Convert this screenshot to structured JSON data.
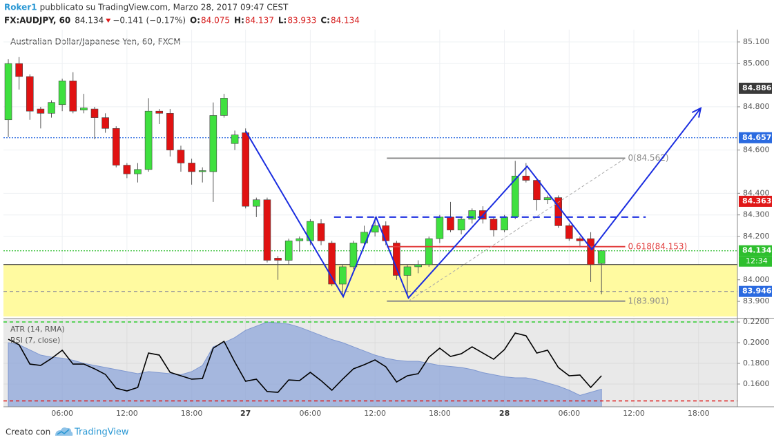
{
  "header": {
    "author": "Roker1",
    "published": "pubblicato su TradingView.com, Marzo 28, 2017 09:47 CEST",
    "symbol": "FX:AUDJPY, 60",
    "last": 84.134,
    "change": "−0.141 (−0.17%)",
    "ohlc": [
      {
        "key": "O:",
        "value": 84.075
      },
      {
        "key": "H:",
        "value": 84.137
      },
      {
        "key": "L:",
        "value": 83.933
      },
      {
        "key": "C:",
        "value": 84.134
      }
    ]
  },
  "footer": {
    "text": "Creato con",
    "brand": "TradingView"
  },
  "chart_data": [
    {
      "type": "candlestick",
      "title": "Australian Dollar/Japanese Yen, 60, FXCM",
      "x": [
        0,
        1,
        2,
        3,
        4,
        5,
        6,
        7,
        8,
        9,
        10,
        11,
        12,
        13,
        14,
        15,
        16,
        17,
        18,
        19,
        20,
        21,
        22,
        23,
        24,
        25,
        26,
        27,
        28,
        29,
        30,
        31,
        32,
        33,
        34,
        35,
        36,
        37,
        38,
        39,
        40,
        41,
        42,
        43,
        44,
        45,
        46,
        47,
        48,
        49,
        50,
        51,
        52,
        53,
        54,
        55
      ],
      "open": [
        84.74,
        85.0,
        84.94,
        84.79,
        84.77,
        84.81,
        84.92,
        84.785,
        84.79,
        84.75,
        84.7,
        84.53,
        84.49,
        84.51,
        84.78,
        84.77,
        84.6,
        84.54,
        84.5,
        84.5,
        84.76,
        84.63,
        84.68,
        84.34,
        84.37,
        84.1,
        84.09,
        84.18,
        84.18,
        84.26,
        84.17,
        83.98,
        84.06,
        84.17,
        84.22,
        84.25,
        84.17,
        84.02,
        84.06,
        84.07,
        84.19,
        84.29,
        84.23,
        84.28,
        84.32,
        84.28,
        84.23,
        84.29,
        84.48,
        84.46,
        84.37,
        84.38,
        84.25,
        84.19,
        84.19,
        84.075
      ],
      "high": [
        85.02,
        85.03,
        84.95,
        84.8,
        84.83,
        84.93,
        84.96,
        84.86,
        84.8,
        84.77,
        84.71,
        84.54,
        84.54,
        84.84,
        84.79,
        84.79,
        84.62,
        84.56,
        84.52,
        84.82,
        84.86,
        84.69,
        84.7,
        84.38,
        84.38,
        84.11,
        84.19,
        84.2,
        84.28,
        84.28,
        84.18,
        84.07,
        84.18,
        84.25,
        84.29,
        84.27,
        84.18,
        84.07,
        84.09,
        84.2,
        84.3,
        84.36,
        84.29,
        84.33,
        84.34,
        84.29,
        84.3,
        84.55,
        84.54,
        84.47,
        84.39,
        84.39,
        84.26,
        84.2,
        84.22,
        84.137
      ],
      "low": [
        84.66,
        84.88,
        84.74,
        84.7,
        84.75,
        84.78,
        84.77,
        84.77,
        84.65,
        84.68,
        84.52,
        84.47,
        84.45,
        84.5,
        84.72,
        84.57,
        84.5,
        84.44,
        84.45,
        84.36,
        84.75,
        84.6,
        84.33,
        84.29,
        84.08,
        84.0,
        84.07,
        84.13,
        84.16,
        84.16,
        83.97,
        83.93,
        84.05,
        84.16,
        84.2,
        84.16,
        84.0,
        83.93,
        84.03,
        84.06,
        84.17,
        84.22,
        84.21,
        84.26,
        84.26,
        84.2,
        84.22,
        84.28,
        84.45,
        84.32,
        84.35,
        84.24,
        84.18,
        84.15,
        83.99,
        83.933
      ],
      "close": [
        85.0,
        84.94,
        84.78,
        84.77,
        84.82,
        84.92,
        84.78,
        84.795,
        84.75,
        84.7,
        84.53,
        84.49,
        84.51,
        84.78,
        84.77,
        84.6,
        84.54,
        84.5,
        84.505,
        84.76,
        84.84,
        84.67,
        84.34,
        84.37,
        84.09,
        84.09,
        84.18,
        84.19,
        84.27,
        84.18,
        83.98,
        84.06,
        84.17,
        84.22,
        84.25,
        84.18,
        84.02,
        84.06,
        84.07,
        84.19,
        84.29,
        84.23,
        84.28,
        84.32,
        84.28,
        84.23,
        84.29,
        84.48,
        84.46,
        84.37,
        84.38,
        84.25,
        84.19,
        84.18,
        84.07,
        84.134
      ],
      "up_color": "#3fe03f",
      "down_color": "#e01212",
      "xlim": [
        -0.45,
        67.6
      ],
      "xticks": [
        {
          "value": 5,
          "label": "06:00"
        },
        {
          "value": 11,
          "label": "12:00"
        },
        {
          "value": 17,
          "label": "18:00"
        },
        {
          "value": 22,
          "label": "27"
        },
        {
          "value": 28,
          "label": "06:00"
        },
        {
          "value": 34,
          "label": "12:00"
        },
        {
          "value": 40,
          "label": "18:00"
        },
        {
          "value": 46,
          "label": "28"
        },
        {
          "value": 52,
          "label": "06:00"
        },
        {
          "value": 58,
          "label": "12:00"
        },
        {
          "value": 64,
          "label": "18:00"
        }
      ],
      "ylim": [
        83.827,
        85.157
      ],
      "yticks": [
        {
          "value": 85.1,
          "label": "85.100"
        },
        {
          "value": 85.0,
          "label": "85.000"
        },
        {
          "value": 84.8,
          "label": "84.800"
        },
        {
          "value": 84.6,
          "label": "84.600"
        },
        {
          "value": 84.4,
          "label": "84.400"
        },
        {
          "value": 84.3,
          "label": "84.300"
        },
        {
          "value": 84.2,
          "label": "84.200"
        },
        {
          "value": 84.0,
          "label": "84.000"
        },
        {
          "value": 83.9,
          "label": "83.900"
        }
      ],
      "grid": true,
      "price_labels": [
        {
          "value": 84.886,
          "color": "#3a3a3a"
        },
        {
          "value": 84.657,
          "color": "#2a6ae0"
        },
        {
          "value": 84.363,
          "color": "#e01818"
        },
        {
          "value": 84.134,
          "color": "#2ebf2e"
        },
        {
          "value": 83.946,
          "color": "#2a6ae0"
        }
      ],
      "countdown": "12:34",
      "levels": [
        {
          "value": 84.657,
          "color": "#2a6ae0",
          "dash": "dotted"
        },
        {
          "value": 84.134,
          "color": "#2ebf2e",
          "dash": "dotted"
        },
        {
          "value": 83.946,
          "color": "#9a9a9a",
          "dash": "dashed"
        }
      ],
      "zone": {
        "top": 84.07,
        "bottom": 83.83,
        "color": "#fffaa0",
        "line_color": "#222"
      },
      "fib": {
        "x": [
          35.1,
          57.2
        ],
        "diagonal_x": [
          37.1,
          57.2
        ],
        "levels": [
          {
            "value": 84.562,
            "label": "0(84.562)",
            "color": "#8a8a8a"
          },
          {
            "value": 84.153,
            "label": "0.618(84.153)",
            "color": "#e23c3c"
          },
          {
            "value": 83.901,
            "label": "1(83.901)",
            "color": "#8a8a8a"
          }
        ]
      },
      "trend_line": {
        "value": 84.29,
        "x": [
          30.2,
          59.1
        ],
        "color": "#1a2de0"
      },
      "zigzag": {
        "x": [
          22,
          31.05,
          34.1,
          37.1,
          48.1,
          54.1,
          64.2
        ],
        "y": [
          84.688,
          83.922,
          84.289,
          83.916,
          84.525,
          84.14,
          84.794
        ],
        "color": "#1a2de0"
      }
    },
    {
      "type": "line",
      "x": [
        0,
        1,
        2,
        3,
        4,
        5,
        6,
        7,
        8,
        9,
        10,
        11,
        12,
        13,
        14,
        15,
        16,
        17,
        18,
        19,
        20,
        21,
        22,
        23,
        24,
        25,
        26,
        27,
        28,
        29,
        30,
        31,
        32,
        33,
        34,
        35,
        36,
        37,
        38,
        39,
        40,
        41,
        42,
        43,
        44,
        45,
        46,
        47,
        48,
        49,
        50,
        51,
        52,
        53,
        54,
        55
      ],
      "series": [
        {
          "name": "ATR (14, RMA)",
          "style": "area",
          "color": "#8ea6da",
          "values": [
            0.2,
            0.198,
            0.193,
            0.188,
            0.186,
            0.185,
            0.183,
            0.18,
            0.178,
            0.176,
            0.174,
            0.172,
            0.17,
            0.172,
            0.171,
            0.17,
            0.169,
            0.172,
            0.178,
            0.196,
            0.2,
            0.205,
            0.212,
            0.216,
            0.22,
            0.219,
            0.218,
            0.215,
            0.211,
            0.207,
            0.203,
            0.2,
            0.196,
            0.192,
            0.188,
            0.185,
            0.183,
            0.182,
            0.182,
            0.18,
            0.178,
            0.177,
            0.176,
            0.174,
            0.171,
            0.169,
            0.167,
            0.166,
            0.166,
            0.164,
            0.161,
            0.158,
            0.154,
            0.149,
            0.152,
            0.155
          ]
        },
        {
          "name": "RSI (7, close)",
          "style": "line",
          "color": "#000000",
          "values": [
            0.2033,
            0.198,
            0.1793,
            0.178,
            0.1847,
            0.1927,
            0.1793,
            0.1793,
            0.1747,
            0.1693,
            0.156,
            0.1533,
            0.1567,
            0.19,
            0.188,
            0.1713,
            0.168,
            0.1647,
            0.1653,
            0.1947,
            0.2013,
            0.1813,
            0.1627,
            0.1647,
            0.1527,
            0.152,
            0.164,
            0.1633,
            0.1713,
            0.1633,
            0.154,
            0.1647,
            0.1747,
            0.1787,
            0.1833,
            0.1767,
            0.162,
            0.168,
            0.17,
            0.186,
            0.1947,
            0.1867,
            0.1893,
            0.196,
            0.19,
            0.184,
            0.1933,
            0.2093,
            0.2067,
            0.19,
            0.1927,
            0.176,
            0.168,
            0.1687,
            0.1567,
            0.168
          ]
        }
      ],
      "xlim": [
        -0.45,
        67.6
      ],
      "ylim": [
        0.138,
        0.2227
      ],
      "yticks": [
        {
          "value": 0.22,
          "label": "0.2200"
        },
        {
          "value": 0.2,
          "label": "0.2000"
        },
        {
          "value": 0.18,
          "label": "0.1800"
        },
        {
          "value": 0.16,
          "label": "0.1600"
        }
      ],
      "levels": [
        {
          "value": 0.22,
          "color": "#2ecc2e",
          "dash": "dashed"
        },
        {
          "value": 0.1437,
          "color": "#e01818",
          "dash": "dashed"
        }
      ]
    }
  ]
}
